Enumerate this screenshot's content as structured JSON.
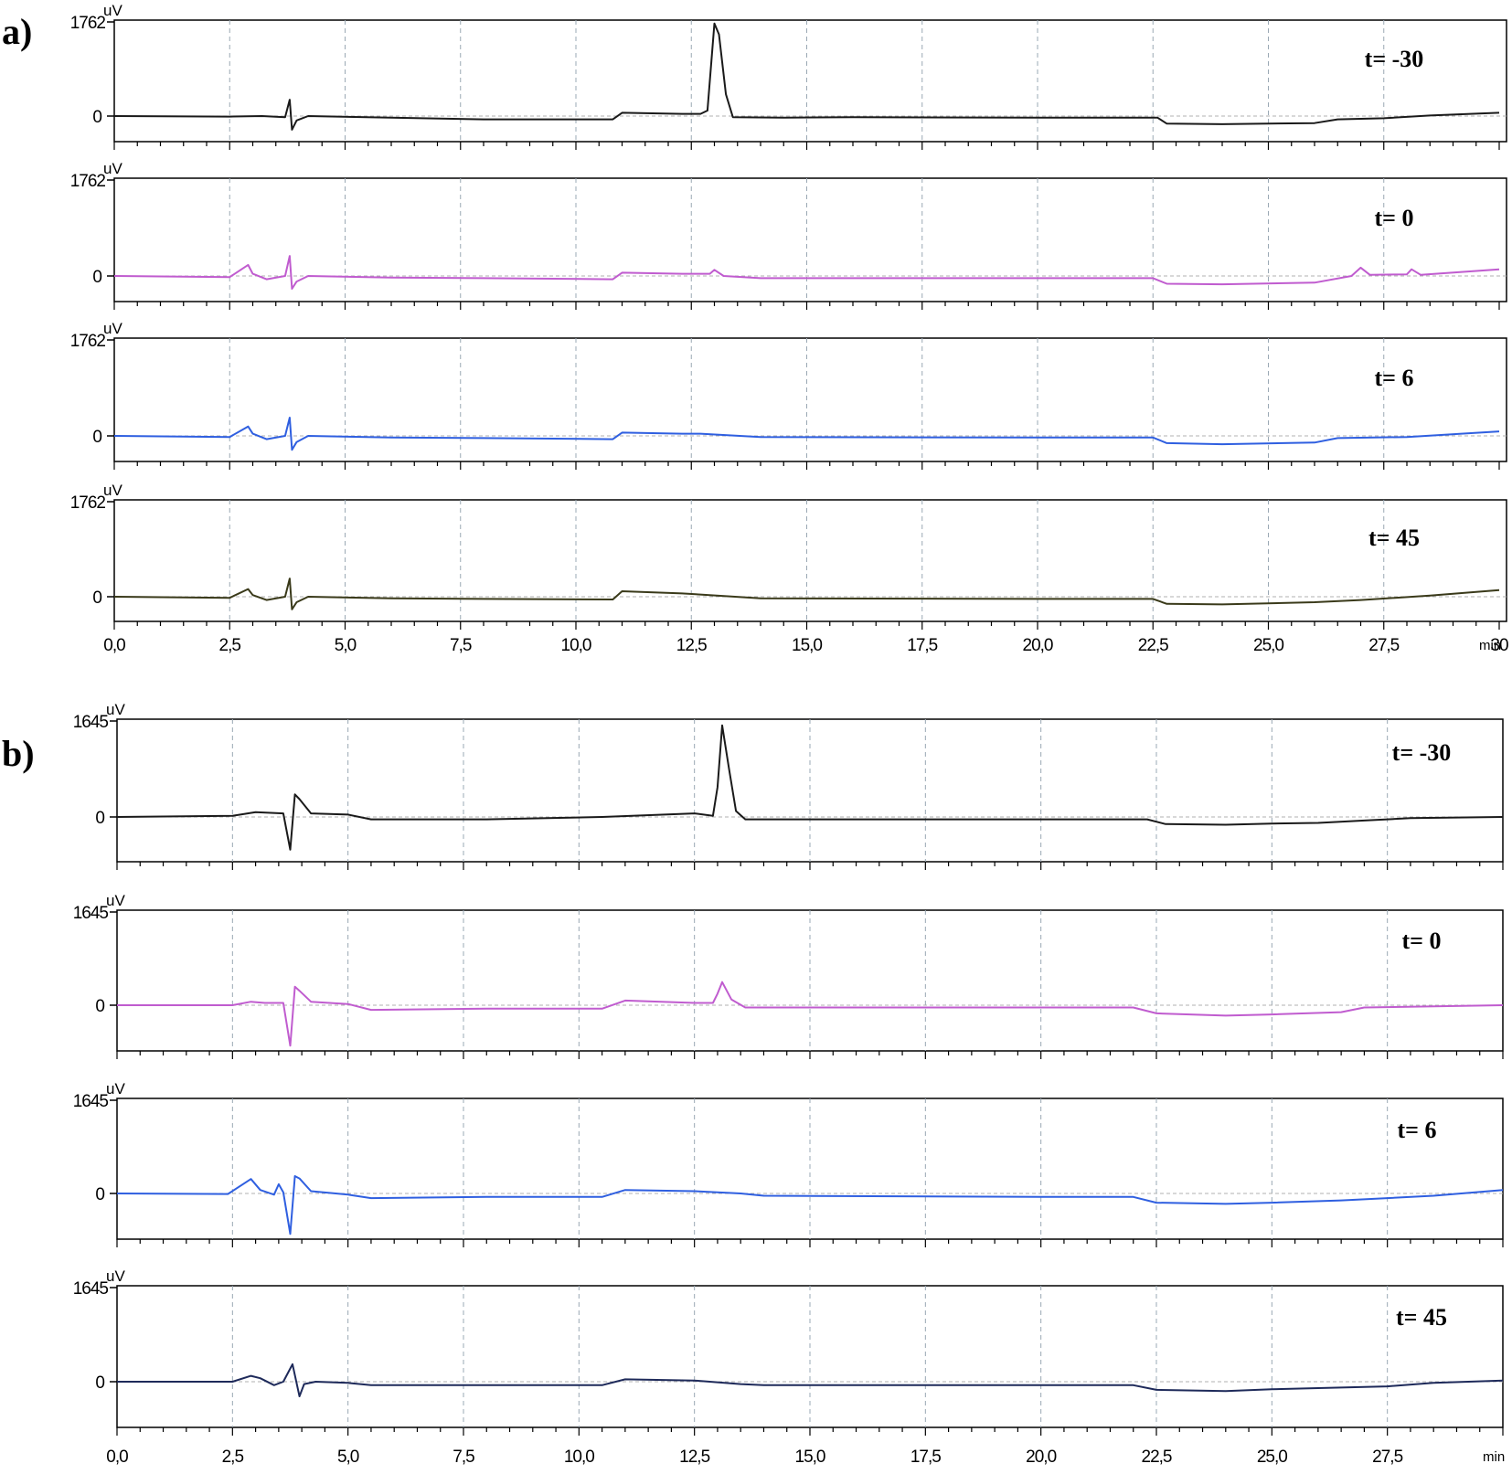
{
  "chart_data": [
    {
      "type": "line",
      "panel_label": "a)",
      "x_unit": "min",
      "y_unit": "uV",
      "xlim": [
        0,
        30
      ],
      "x_ticks": [
        "0,0",
        "2,5",
        "5,0",
        "7,5",
        "10,0",
        "12,5",
        "15,0",
        "17,5",
        "20,0",
        "22,5",
        "25,0",
        "27,5",
        "30"
      ],
      "ylim": [
        -400,
        1762
      ],
      "y_ticks": [
        "1762",
        "0"
      ],
      "grid": "vertical dashed at each major tick",
      "traces": [
        {
          "tag": "t= -30",
          "color": "#1a1a1a",
          "points": [
            [
              0,
              0
            ],
            [
              2.5,
              -10
            ],
            [
              3.2,
              0
            ],
            [
              3.7,
              -20
            ],
            [
              3.8,
              300
            ],
            [
              3.85,
              -250
            ],
            [
              3.95,
              -80
            ],
            [
              4.2,
              0
            ],
            [
              6,
              -30
            ],
            [
              8,
              -60
            ],
            [
              10.8,
              -60
            ],
            [
              11,
              60
            ],
            [
              12.3,
              40
            ],
            [
              12.7,
              40
            ],
            [
              12.85,
              100
            ],
            [
              13.0,
              1700
            ],
            [
              13.1,
              1500
            ],
            [
              13.25,
              400
            ],
            [
              13.4,
              -20
            ],
            [
              14.5,
              -30
            ],
            [
              16,
              -20
            ],
            [
              20,
              -30
            ],
            [
              22.6,
              -30
            ],
            [
              22.8,
              -140
            ],
            [
              24,
              -150
            ],
            [
              26,
              -130
            ],
            [
              26.5,
              -60
            ],
            [
              27.5,
              -40
            ],
            [
              28.5,
              10
            ],
            [
              30,
              60
            ]
          ]
        },
        {
          "tag": "t= 0",
          "color": "#c05ccf",
          "points": [
            [
              0,
              0
            ],
            [
              2.5,
              -20
            ],
            [
              2.9,
              200
            ],
            [
              3.0,
              40
            ],
            [
              3.3,
              -60
            ],
            [
              3.7,
              0
            ],
            [
              3.8,
              360
            ],
            [
              3.85,
              -230
            ],
            [
              3.95,
              -100
            ],
            [
              4.2,
              0
            ],
            [
              6,
              -30
            ],
            [
              8,
              -40
            ],
            [
              10.8,
              -60
            ],
            [
              11,
              60
            ],
            [
              12.3,
              40
            ],
            [
              12.9,
              40
            ],
            [
              13.0,
              110
            ],
            [
              13.2,
              0
            ],
            [
              14,
              -40
            ],
            [
              20,
              -40
            ],
            [
              22.5,
              -40
            ],
            [
              22.8,
              -140
            ],
            [
              24,
              -150
            ],
            [
              26,
              -120
            ],
            [
              26.8,
              0
            ],
            [
              27,
              150
            ],
            [
              27.2,
              20
            ],
            [
              28,
              30
            ],
            [
              28.1,
              120
            ],
            [
              28.3,
              20
            ],
            [
              30,
              120
            ]
          ]
        },
        {
          "tag": "t= 6",
          "color": "#2f5fe0",
          "points": [
            [
              0,
              0
            ],
            [
              2.5,
              -20
            ],
            [
              2.9,
              170
            ],
            [
              3.0,
              40
            ],
            [
              3.3,
              -60
            ],
            [
              3.7,
              0
            ],
            [
              3.8,
              330
            ],
            [
              3.85,
              -250
            ],
            [
              3.95,
              -110
            ],
            [
              4.2,
              0
            ],
            [
              6,
              -30
            ],
            [
              8,
              -40
            ],
            [
              10.8,
              -60
            ],
            [
              11,
              60
            ],
            [
              12.3,
              40
            ],
            [
              12.7,
              40
            ],
            [
              14,
              -20
            ],
            [
              20,
              -30
            ],
            [
              22.5,
              -30
            ],
            [
              22.8,
              -130
            ],
            [
              24,
              -150
            ],
            [
              26,
              -120
            ],
            [
              26.5,
              -40
            ],
            [
              28,
              -20
            ],
            [
              30,
              80
            ]
          ]
        },
        {
          "tag": "t= 45",
          "color": "#3a3a1a",
          "points": [
            [
              0,
              0
            ],
            [
              2.5,
              -20
            ],
            [
              2.9,
              140
            ],
            [
              3.0,
              30
            ],
            [
              3.3,
              -60
            ],
            [
              3.7,
              0
            ],
            [
              3.8,
              330
            ],
            [
              3.85,
              -230
            ],
            [
              3.95,
              -100
            ],
            [
              4.2,
              0
            ],
            [
              6,
              -30
            ],
            [
              8,
              -40
            ],
            [
              10.8,
              -50
            ],
            [
              11,
              100
            ],
            [
              12.3,
              60
            ],
            [
              12.7,
              40
            ],
            [
              14,
              -30
            ],
            [
              20,
              -40
            ],
            [
              22.5,
              -40
            ],
            [
              22.8,
              -130
            ],
            [
              24,
              -140
            ],
            [
              26,
              -100
            ],
            [
              27,
              -60
            ],
            [
              28.5,
              20
            ],
            [
              30,
              120
            ]
          ]
        }
      ]
    },
    {
      "type": "line",
      "panel_label": "b)",
      "x_unit": "min",
      "y_unit": "uV",
      "xlim": [
        0,
        30
      ],
      "x_ticks": [
        "0,0",
        "2,5",
        "5,0",
        "7,5",
        "10,0",
        "12,5",
        "15,0",
        "17,5",
        "20,0",
        "22,5",
        "25,0",
        "27,5"
      ],
      "ylim": [
        -1050,
        1645
      ],
      "y_ticks": [
        "1645",
        "0"
      ],
      "grid": "vertical dashed at each major tick",
      "traces": [
        {
          "tag": "t= -30",
          "color": "#1a1a1a",
          "points": [
            [
              0,
              0
            ],
            [
              2.5,
              20
            ],
            [
              3.0,
              80
            ],
            [
              3.6,
              60
            ],
            [
              3.75,
              -550
            ],
            [
              3.85,
              380
            ],
            [
              3.95,
              300
            ],
            [
              4.2,
              60
            ],
            [
              5,
              40
            ],
            [
              5.5,
              -40
            ],
            [
              8,
              -40
            ],
            [
              10.5,
              0
            ],
            [
              12.5,
              60
            ],
            [
              12.9,
              20
            ],
            [
              13.0,
              500
            ],
            [
              13.1,
              1540
            ],
            [
              13.25,
              800
            ],
            [
              13.4,
              100
            ],
            [
              13.6,
              -40
            ],
            [
              20,
              -40
            ],
            [
              22.3,
              -40
            ],
            [
              22.7,
              -120
            ],
            [
              24,
              -130
            ],
            [
              25,
              -110
            ],
            [
              26,
              -100
            ],
            [
              27,
              -60
            ],
            [
              28,
              -20
            ],
            [
              30,
              0
            ]
          ]
        },
        {
          "tag": "t= 0",
          "color": "#c05ccf",
          "points": [
            [
              0,
              0
            ],
            [
              2.5,
              0
            ],
            [
              2.9,
              60
            ],
            [
              3.2,
              40
            ],
            [
              3.6,
              40
            ],
            [
              3.75,
              -700
            ],
            [
              3.85,
              320
            ],
            [
              3.95,
              250
            ],
            [
              4.2,
              60
            ],
            [
              5,
              20
            ],
            [
              5.5,
              -80
            ],
            [
              8,
              -60
            ],
            [
              10.5,
              -60
            ],
            [
              11,
              80
            ],
            [
              12.5,
              40
            ],
            [
              12.9,
              40
            ],
            [
              13.0,
              200
            ],
            [
              13.1,
              400
            ],
            [
              13.3,
              100
            ],
            [
              13.6,
              -40
            ],
            [
              20,
              -40
            ],
            [
              22.0,
              -40
            ],
            [
              22.5,
              -140
            ],
            [
              24,
              -180
            ],
            [
              25,
              -160
            ],
            [
              26.5,
              -120
            ],
            [
              27,
              -40
            ],
            [
              30,
              0
            ]
          ]
        },
        {
          "tag": "t= 6",
          "color": "#2f5fe0",
          "points": [
            [
              0,
              0
            ],
            [
              2.4,
              -10
            ],
            [
              2.9,
              250
            ],
            [
              3.1,
              60
            ],
            [
              3.4,
              -20
            ],
            [
              3.5,
              160
            ],
            [
              3.6,
              20
            ],
            [
              3.75,
              -700
            ],
            [
              3.85,
              300
            ],
            [
              3.95,
              260
            ],
            [
              4.2,
              40
            ],
            [
              5,
              -20
            ],
            [
              5.5,
              -80
            ],
            [
              8,
              -60
            ],
            [
              10.5,
              -60
            ],
            [
              11,
              60
            ],
            [
              12.5,
              40
            ],
            [
              13.5,
              0
            ],
            [
              14,
              -40
            ],
            [
              20,
              -60
            ],
            [
              22.0,
              -60
            ],
            [
              22.5,
              -160
            ],
            [
              24,
              -180
            ],
            [
              25,
              -160
            ],
            [
              26.5,
              -120
            ],
            [
              27.5,
              -80
            ],
            [
              28.5,
              -40
            ],
            [
              30,
              60
            ]
          ]
        },
        {
          "tag": "t= 45",
          "color": "#1e2a5a",
          "points": [
            [
              0,
              0
            ],
            [
              2.5,
              0
            ],
            [
              2.9,
              100
            ],
            [
              3.1,
              60
            ],
            [
              3.4,
              -60
            ],
            [
              3.6,
              0
            ],
            [
              3.8,
              300
            ],
            [
              3.95,
              -250
            ],
            [
              4.05,
              -40
            ],
            [
              4.3,
              0
            ],
            [
              5,
              -20
            ],
            [
              5.5,
              -60
            ],
            [
              8,
              -60
            ],
            [
              10.5,
              -60
            ],
            [
              11,
              40
            ],
            [
              12.5,
              20
            ],
            [
              13.5,
              -40
            ],
            [
              14,
              -60
            ],
            [
              20,
              -60
            ],
            [
              22.0,
              -60
            ],
            [
              22.5,
              -140
            ],
            [
              24,
              -160
            ],
            [
              25,
              -130
            ],
            [
              26.5,
              -100
            ],
            [
              27.5,
              -80
            ],
            [
              28.5,
              -20
            ],
            [
              30,
              20
            ]
          ]
        }
      ]
    }
  ]
}
